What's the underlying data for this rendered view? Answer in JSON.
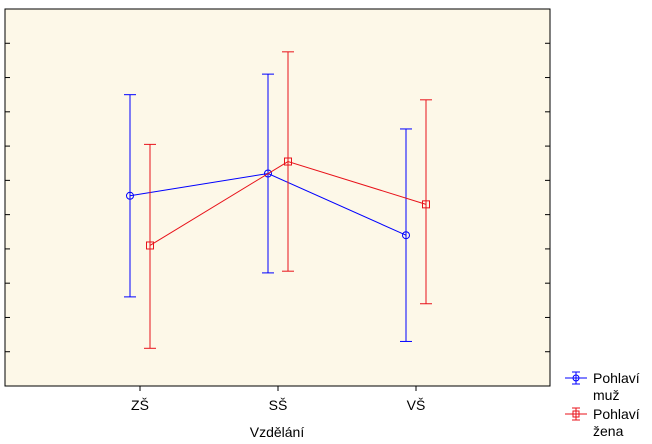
{
  "chart_data": {
    "type": "line",
    "xlabel": "Vzdělání",
    "ylabel": "",
    "title": "",
    "categories": [
      "ZŠ",
      "SŠ",
      "VŠ"
    ],
    "ylim": [
      0,
      11
    ],
    "grid": false,
    "y_tick_marks": [
      0,
      1,
      2,
      3,
      4,
      5,
      6,
      7,
      8,
      9,
      10,
      11
    ],
    "legend_position": "bottom-right-outside",
    "series": [
      {
        "name": "Pohlaví muž",
        "name_lines": [
          "Pohlaví",
          "muž"
        ],
        "color": "#0000ff",
        "marker": "circle",
        "values": [
          5.55,
          6.2,
          4.4
        ],
        "lower": [
          2.6,
          3.3,
          1.3
        ],
        "upper": [
          8.5,
          9.1,
          7.5
        ]
      },
      {
        "name": "Pohlaví žena",
        "name_lines": [
          "Pohlaví",
          "žena"
        ],
        "color": "#e8121a",
        "marker": "square",
        "values": [
          4.1,
          6.55,
          5.3
        ],
        "lower": [
          1.1,
          3.35,
          2.4
        ],
        "upper": [
          7.05,
          9.75,
          8.35
        ]
      }
    ],
    "colors": {
      "plot_background": "#fdf8e8",
      "frame": "#000000"
    }
  }
}
